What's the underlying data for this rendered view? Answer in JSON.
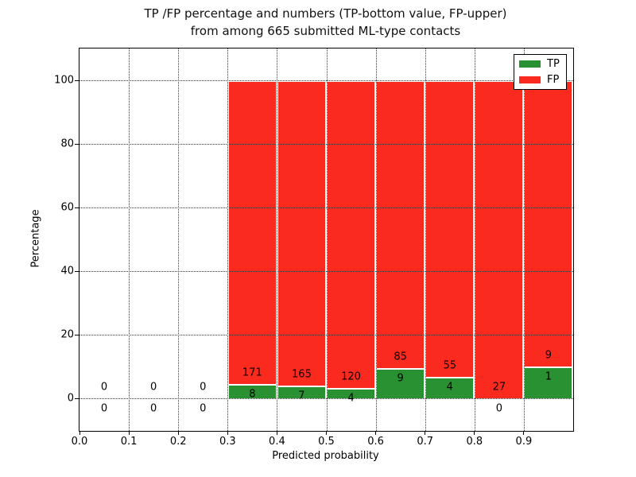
{
  "figure": {
    "title_line1": "TP /FP percentage and numbers (TP-bottom value, FP-upper)",
    "title_line2": "from among 665 submitted ML-type contacts",
    "xlabel": "Predicted probability",
    "ylabel": "Percentage"
  },
  "legend": {
    "position": "upper right",
    "items": [
      {
        "label": "TP",
        "color": "#2a9132"
      },
      {
        "label": "FP",
        "color": "#fa2b1e"
      }
    ]
  },
  "axes": {
    "xtick_labels": [
      "0.0",
      "0.1",
      "0.2",
      "0.3",
      "0.4",
      "0.5",
      "0.6",
      "0.7",
      "0.8",
      "0.9"
    ],
    "xtick_values": [
      0.0,
      0.1,
      0.2,
      0.3,
      0.4,
      0.5,
      0.6,
      0.7,
      0.8,
      0.9
    ],
    "ytick_labels": [
      "0",
      "20",
      "40",
      "60",
      "80",
      "100"
    ],
    "ytick_values": [
      0,
      20,
      40,
      60,
      80,
      100
    ],
    "xlim": [
      0.0,
      1.0
    ],
    "ylim": [
      -10,
      110
    ],
    "grid_style": "dotted"
  },
  "chart_data": {
    "type": "bar",
    "stacked": true,
    "title": "TP /FP percentage and numbers (TP-bottom value, FP-upper) from among 665 submitted ML-type contacts",
    "xlabel": "Predicted probability",
    "ylabel": "Percentage",
    "total_contacts": 665,
    "bin_width": 0.1,
    "categories": [
      "0.0-0.1",
      "0.1-0.2",
      "0.2-0.3",
      "0.3-0.4",
      "0.4-0.5",
      "0.5-0.6",
      "0.6-0.7",
      "0.7-0.8",
      "0.8-0.9",
      "0.9-1.0"
    ],
    "series": [
      {
        "name": "TP",
        "color": "#2a9132",
        "counts": [
          0,
          0,
          0,
          8,
          7,
          4,
          9,
          4,
          0,
          1
        ]
      },
      {
        "name": "FP",
        "color": "#fa2b1e",
        "counts": [
          0,
          0,
          0,
          171,
          165,
          120,
          85,
          55,
          27,
          9
        ]
      }
    ],
    "bar_height_rule": "non-empty bins are stacked to 100 percent; TP percent = TP/(TP+FP)*100 at bottom, FP fills to 100",
    "legend_position": "upper right",
    "grid": true
  }
}
